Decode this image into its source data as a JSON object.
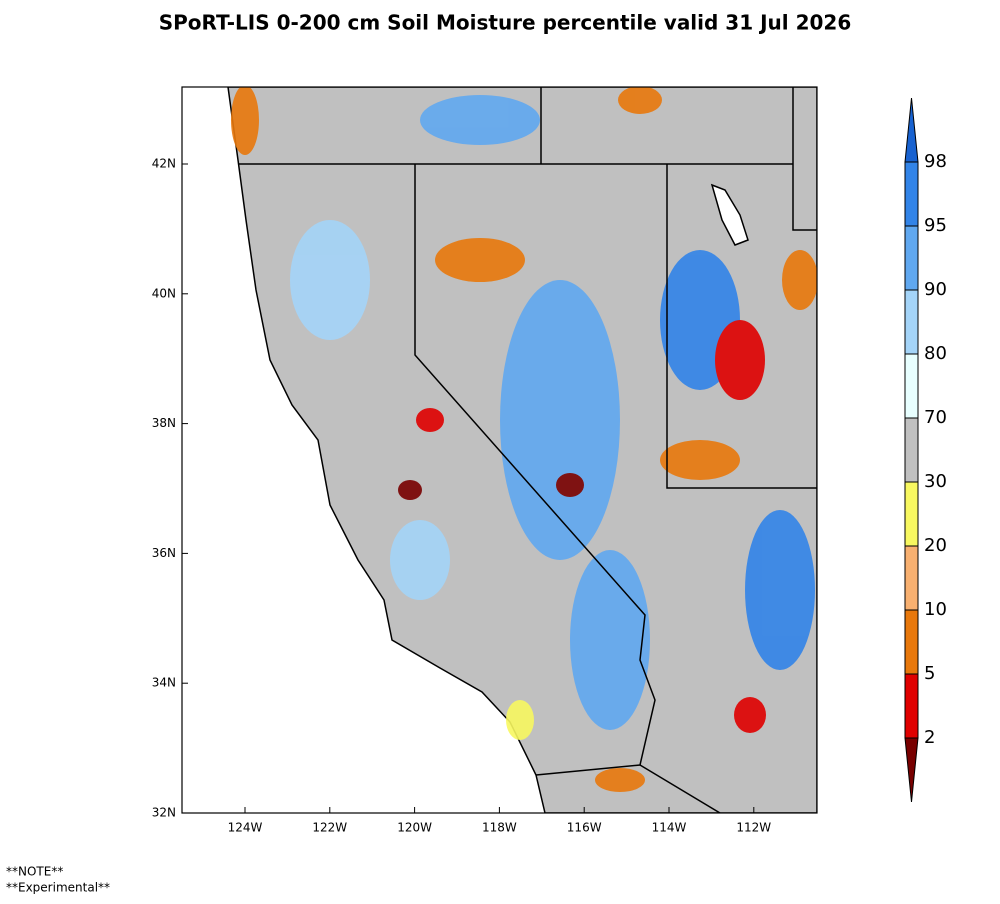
{
  "title": "SPoRT-LIS 0-200 cm Soil Moisture percentile valid 31 Jul 2026",
  "map": {
    "lat_ticks": [
      "42N",
      "40N",
      "38N",
      "36N",
      "34N",
      "32N"
    ],
    "lon_ticks": [
      "124W",
      "122W",
      "120W",
      "118W",
      "116W",
      "114W",
      "112W"
    ]
  },
  "colorbar": {
    "labels": [
      2,
      5,
      10,
      20,
      30,
      70,
      80,
      90,
      95,
      98
    ],
    "colors": [
      "#780000",
      "#e00000",
      "#e8780c",
      "#f8b070",
      "#f8f860",
      "#c0c0c0",
      "#e8ffff",
      "#a4d4f8",
      "#60a8f0",
      "#3284e8",
      "#1862d0"
    ]
  },
  "notes": [
    "**NOTE**",
    "**Experimental**"
  ]
}
